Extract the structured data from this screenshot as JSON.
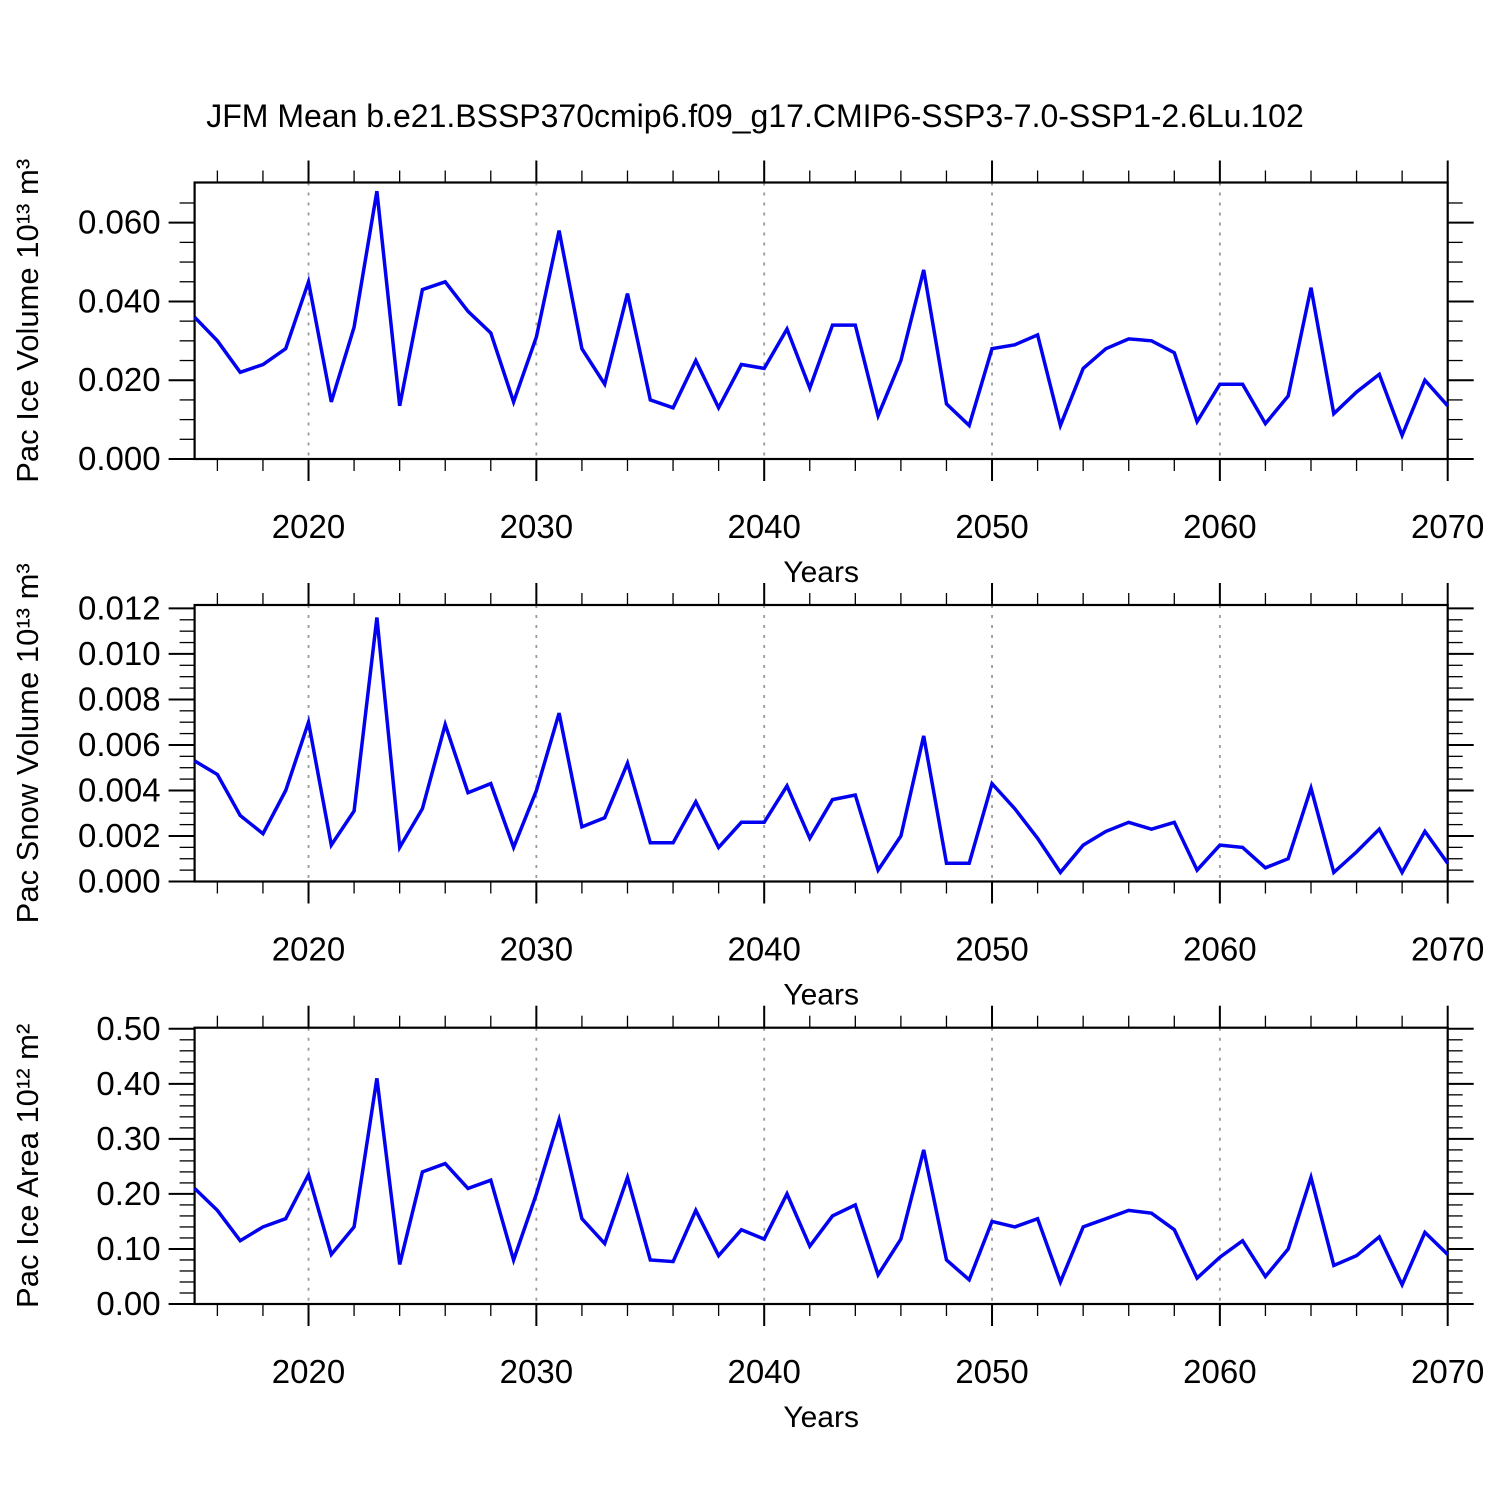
{
  "title": "JFM Mean b.e21.BSSP370cmip6.f09_g17.CMIP6-SSP3-7.0-SSP1-2.6Lu.102",
  "figure": {
    "background": "#ffffff",
    "line_color": "#0202f0",
    "grid_color": "#9a9a9a",
    "frame_color": "#000000"
  },
  "chart_data": {
    "type": "line",
    "x": {
      "label": "Years",
      "range": [
        2015,
        2070
      ],
      "major_ticks": [
        2020,
        2030,
        2040,
        2050,
        2060,
        2070
      ],
      "major_tick_labels": [
        "2020",
        "2030",
        "2040",
        "2050",
        "2060",
        "2070"
      ],
      "minor_ticks": [
        2016,
        2018,
        2022,
        2024,
        2026,
        2028,
        2032,
        2034,
        2036,
        2038,
        2042,
        2044,
        2046,
        2048,
        2052,
        2054,
        2056,
        2058,
        2062,
        2064,
        2066,
        2068
      ],
      "grid_lines": [
        2020,
        2030,
        2040,
        2050,
        2060
      ],
      "years": [
        2015,
        2016,
        2017,
        2018,
        2019,
        2020,
        2021,
        2022,
        2023,
        2024,
        2025,
        2026,
        2027,
        2028,
        2029,
        2030,
        2031,
        2032,
        2033,
        2034,
        2035,
        2036,
        2037,
        2038,
        2039,
        2040,
        2041,
        2042,
        2043,
        2044,
        2045,
        2046,
        2047,
        2048,
        2049,
        2050,
        2051,
        2052,
        2053,
        2054,
        2055,
        2056,
        2057,
        2058,
        2059,
        2060,
        2061,
        2062,
        2063,
        2064,
        2065,
        2066,
        2067,
        2068,
        2069,
        2070
      ]
    },
    "panels": [
      {
        "id": "pac-ice-volume",
        "ylabel": "Pac Ice Volume 10¹³ m³",
        "xlabel": "Years",
        "ylim": [
          0,
          0.0702
        ],
        "ymajor_values": [
          0.0,
          0.02,
          0.04,
          0.06
        ],
        "ymajor_labels": [
          "0.000",
          "0.020",
          "0.040",
          "0.060"
        ],
        "yminor_step": 0.005,
        "values": [
          0.036,
          0.03,
          0.022,
          0.024,
          0.028,
          0.045,
          0.0145,
          0.0335,
          0.068,
          0.0135,
          0.043,
          0.045,
          0.0375,
          0.032,
          0.0145,
          0.031,
          0.058,
          0.028,
          0.019,
          0.042,
          0.015,
          0.013,
          0.025,
          0.013,
          0.024,
          0.023,
          0.033,
          0.018,
          0.034,
          0.034,
          0.011,
          0.025,
          0.048,
          0.014,
          0.0085,
          0.028,
          0.029,
          0.0315,
          0.0085,
          0.023,
          0.028,
          0.0305,
          0.03,
          0.027,
          0.0095,
          0.019,
          0.019,
          0.009,
          0.016,
          0.0435,
          0.0115,
          0.017,
          0.0215,
          0.006,
          0.02,
          0.0135
        ]
      },
      {
        "id": "pac-snow-volume",
        "ylabel": "Pac Snow Volume 10¹³ m³",
        "xlabel": "Years",
        "ylim": [
          0,
          0.01215
        ],
        "ymajor_values": [
          0.0,
          0.002,
          0.004,
          0.006,
          0.008,
          0.01,
          0.012
        ],
        "ymajor_labels": [
          "0.000",
          "0.002",
          "0.004",
          "0.006",
          "0.008",
          "0.010",
          "0.012"
        ],
        "yminor_step": 0.0005,
        "values": [
          0.0053,
          0.0047,
          0.0029,
          0.0021,
          0.004,
          0.007,
          0.0016,
          0.0031,
          0.0116,
          0.0015,
          0.0032,
          0.0069,
          0.0039,
          0.0043,
          0.0015,
          0.004,
          0.0074,
          0.0024,
          0.0028,
          0.0052,
          0.0017,
          0.0017,
          0.0035,
          0.0015,
          0.0026,
          0.0026,
          0.0042,
          0.0019,
          0.0036,
          0.0038,
          0.0005,
          0.002,
          0.0064,
          0.0008,
          0.0008,
          0.0043,
          0.0032,
          0.0019,
          0.0004,
          0.0016,
          0.0022,
          0.0026,
          0.0023,
          0.0026,
          0.0005,
          0.0016,
          0.0015,
          0.0006,
          0.001,
          0.0041,
          0.0004,
          0.0013,
          0.0023,
          0.0004,
          0.0022,
          0.0008
        ]
      },
      {
        "id": "pac-ice-area",
        "ylabel": "Pac Ice Area 10¹² m²",
        "xlabel": "Years",
        "ylim": [
          0,
          0.502
        ],
        "ymajor_values": [
          0.0,
          0.1,
          0.2,
          0.3,
          0.4,
          0.5
        ],
        "ymajor_labels": [
          "0.00",
          "0.10",
          "0.20",
          "0.30",
          "0.40",
          "0.50"
        ],
        "yminor_step": 0.02,
        "values": [
          0.21,
          0.17,
          0.115,
          0.14,
          0.155,
          0.235,
          0.09,
          0.14,
          0.41,
          0.072,
          0.24,
          0.255,
          0.21,
          0.225,
          0.08,
          0.2,
          0.335,
          0.155,
          0.11,
          0.23,
          0.08,
          0.077,
          0.17,
          0.088,
          0.135,
          0.118,
          0.2,
          0.105,
          0.16,
          0.18,
          0.053,
          0.118,
          0.28,
          0.08,
          0.044,
          0.15,
          0.14,
          0.155,
          0.04,
          0.14,
          0.155,
          0.17,
          0.165,
          0.135,
          0.047,
          0.085,
          0.115,
          0.05,
          0.1,
          0.23,
          0.07,
          0.088,
          0.122,
          0.035,
          0.13,
          0.09
        ]
      }
    ]
  }
}
